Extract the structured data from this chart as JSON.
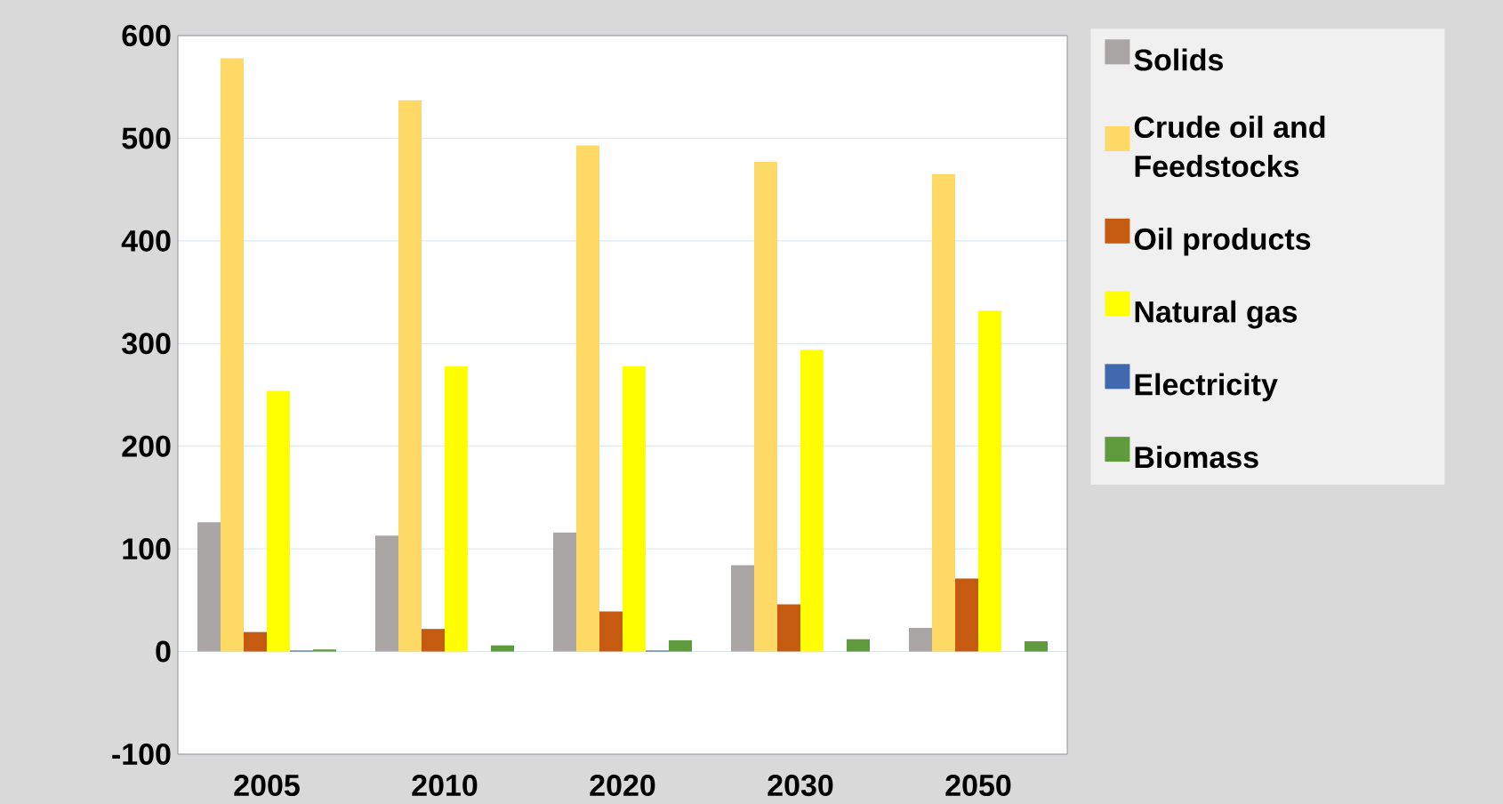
{
  "chart_data": {
    "type": "bar",
    "categories": [
      "2005",
      "2010",
      "2020",
      "2030",
      "2050"
    ],
    "series": [
      {
        "name": "Solids",
        "color": "#aaa5a5",
        "values": [
          126,
          113,
          116,
          84,
          23
        ]
      },
      {
        "name": "Crude oil and Feedstocks",
        "color": "#ffd966",
        "values": [
          578,
          537,
          493,
          477,
          465
        ]
      },
      {
        "name": "Oil products",
        "color": "#c55a11",
        "values": [
          19,
          22,
          39,
          46,
          71
        ]
      },
      {
        "name": "Natural gas",
        "color": "#ffff00",
        "values": [
          254,
          278,
          278,
          294,
          332
        ]
      },
      {
        "name": "Electricity",
        "color": "#4169b0",
        "values": [
          1,
          0,
          1,
          0,
          0
        ]
      },
      {
        "name": "Biomass",
        "color": "#5f9a3c",
        "values": [
          2,
          6,
          11,
          12,
          10
        ]
      }
    ],
    "ylim": [
      -100,
      600
    ],
    "yticks": [
      -100,
      0,
      100,
      200,
      300,
      400,
      500,
      600
    ],
    "grid": "y",
    "legend": "right"
  }
}
